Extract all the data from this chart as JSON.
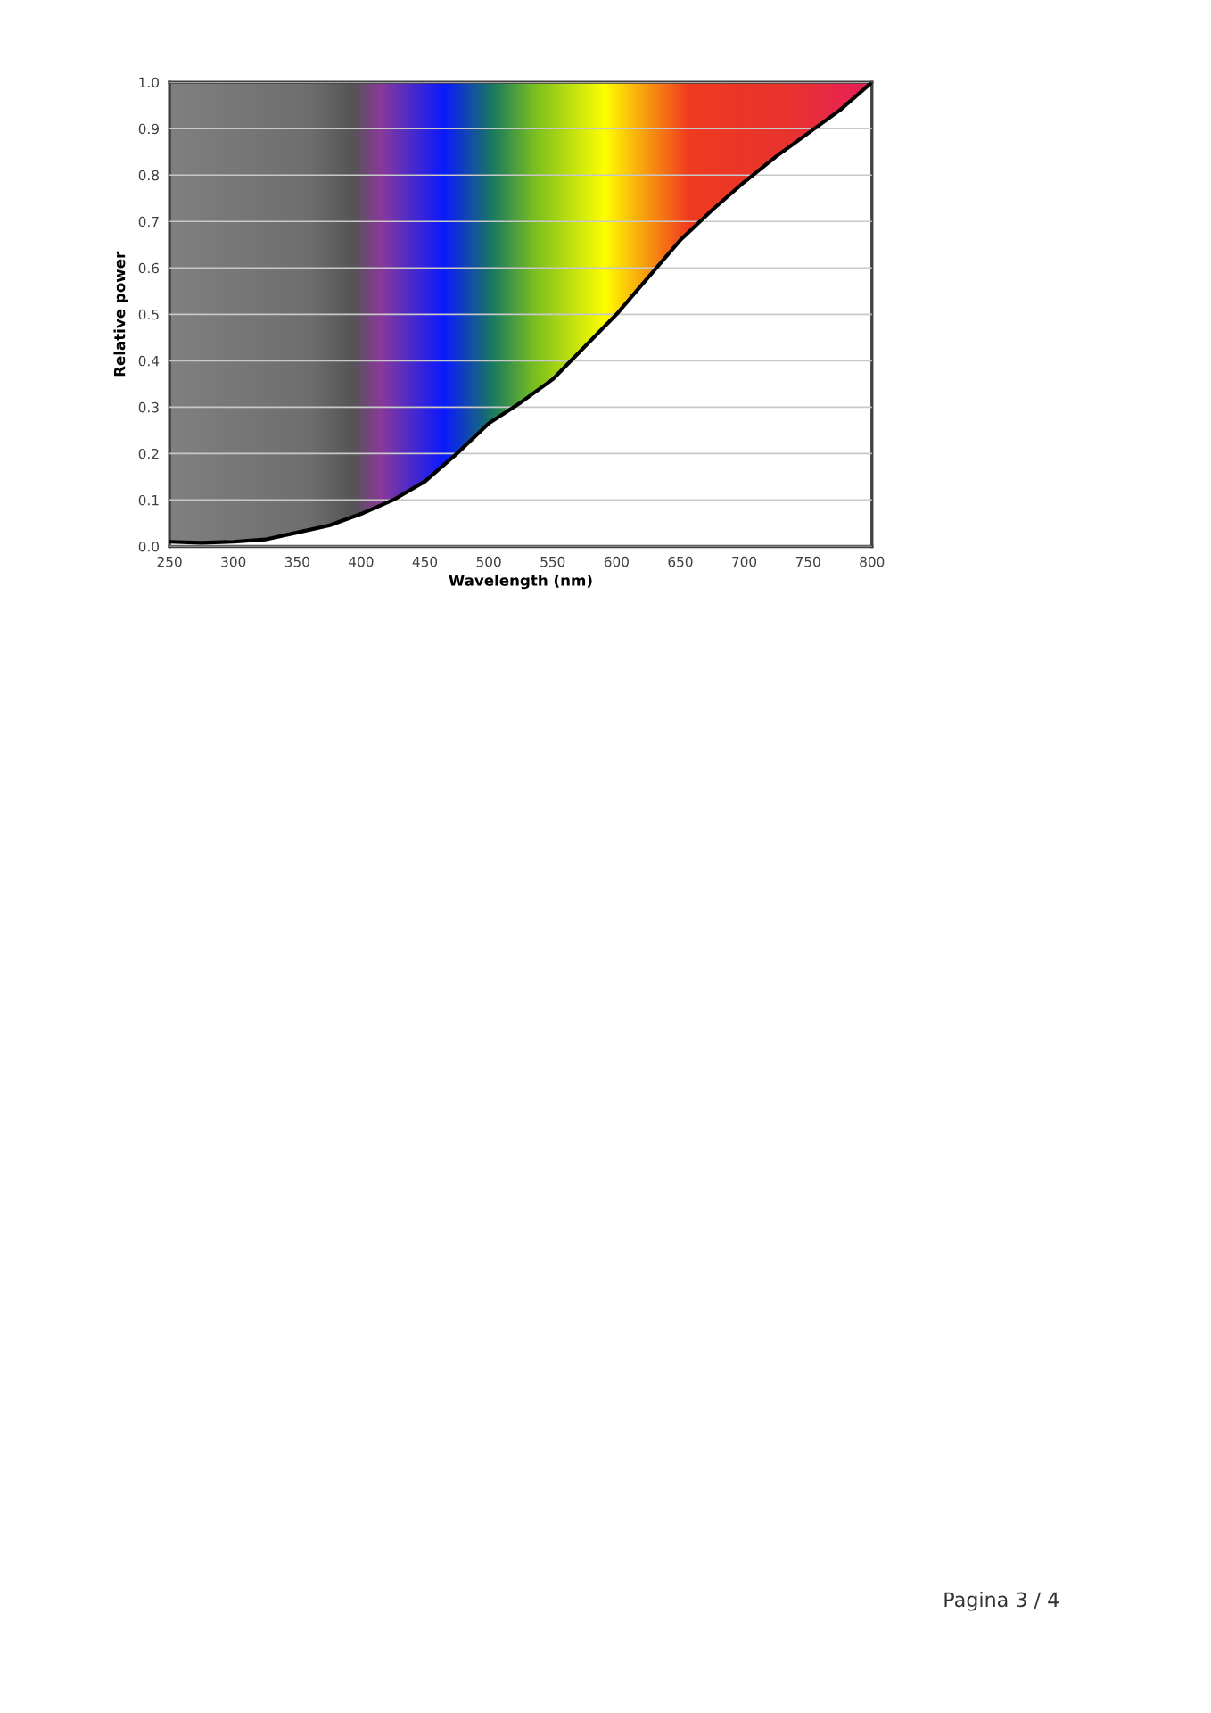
{
  "chart_data": {
    "type": "line",
    "xlabel": "Wavelength (nm)",
    "ylabel": "Relative power",
    "x": [
      250,
      275,
      300,
      325,
      350,
      375,
      400,
      425,
      450,
      475,
      500,
      525,
      550,
      575,
      600,
      625,
      650,
      675,
      700,
      725,
      750,
      775,
      800
    ],
    "series": [
      {
        "color": "#000000",
        "values": [
          0.01,
          0.008,
          0.01,
          0.015,
          0.03,
          0.045,
          0.07,
          0.1,
          0.14,
          0.2,
          0.265,
          0.31,
          0.36,
          0.43,
          0.5,
          0.58,
          0.66,
          0.725,
          0.785,
          0.84,
          0.89,
          0.94,
          1.0
        ]
      }
    ],
    "xlim": [
      250,
      800
    ],
    "ylim": [
      0.0,
      1.0
    ],
    "xticks": [
      250,
      300,
      350,
      400,
      450,
      500,
      550,
      600,
      650,
      700,
      750,
      800
    ],
    "yticks": [
      {
        "value": 0.0,
        "label": "0.0"
      },
      0.1,
      0.2,
      0.3,
      0.4,
      0.5,
      0.6,
      0.7,
      0.8,
      0.9,
      {
        "value": 1.0,
        "label": "1.0"
      }
    ],
    "grid": "y",
    "marker": "none",
    "line_style": "solid",
    "annotations": [
      "Pagina 3 / 4"
    ]
  }
}
